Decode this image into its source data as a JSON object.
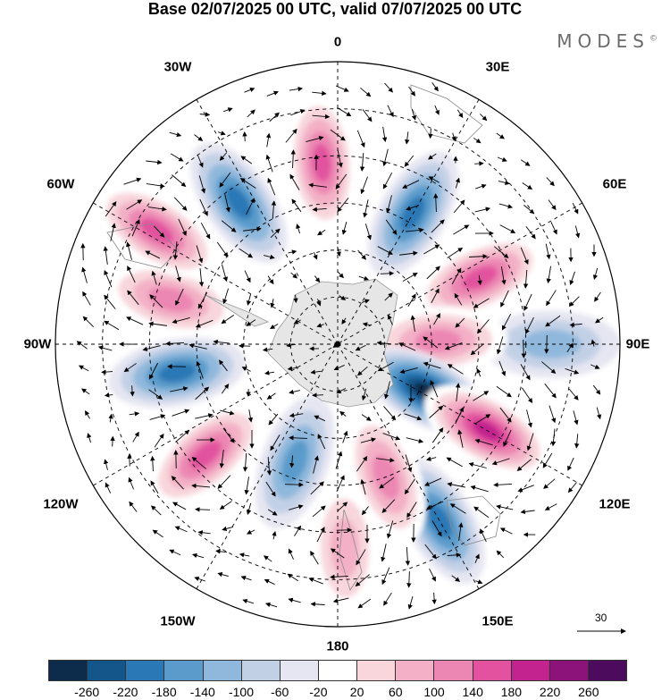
{
  "title": "Base 02/07/2025 00 UTC, valid 07/07/2025 00 UTC",
  "logo": "MODES",
  "logo_mark": "©",
  "longitude_labels": [
    "0",
    "30E",
    "60E",
    "90E",
    "120E",
    "150E",
    "180",
    "150W",
    "120W",
    "90W",
    "60W",
    "30W"
  ],
  "vector_reference": "30",
  "colorbar": {
    "ticks": [
      "-260",
      "-220",
      "-180",
      "-140",
      "-100",
      "-60",
      "-20",
      "20",
      "60",
      "100",
      "140",
      "180",
      "220",
      "260"
    ],
    "colors": [
      "#0d2b4a",
      "#14568a",
      "#2a78b5",
      "#5a9bcb",
      "#8fb8dc",
      "#c2d0e6",
      "#e6e6f2",
      "#ffffff",
      "#f8d6dc",
      "#f3b0c6",
      "#ec86b2",
      "#e2529f",
      "#c2238e",
      "#8c1379",
      "#4d0b5e"
    ]
  },
  "anomaly_blobs": [
    {
      "lon": -35,
      "lat": -35,
      "value": -170
    },
    {
      "lon": -5,
      "lat": -32,
      "value": 170
    },
    {
      "lon": 30,
      "lat": -42,
      "value": -170
    },
    {
      "lon": 65,
      "lat": -40,
      "value": 180
    },
    {
      "lon": 90,
      "lat": -22,
      "value": -120
    },
    {
      "lon": 88,
      "lat": -58,
      "value": 130
    },
    {
      "lon": 118,
      "lat": -58,
      "value": -260
    },
    {
      "lon": 120,
      "lat": -35,
      "value": 240
    },
    {
      "lon": 150,
      "lat": -25,
      "value": -200
    },
    {
      "lon": 178,
      "lat": -25,
      "value": 120
    },
    {
      "lon": 160,
      "lat": -45,
      "value": 150
    },
    {
      "lon": -160,
      "lat": -50,
      "value": -150
    },
    {
      "lon": -130,
      "lat": -35,
      "value": 170
    },
    {
      "lon": -100,
      "lat": -38,
      "value": -180
    },
    {
      "lon": -75,
      "lat": -35,
      "value": 150
    },
    {
      "lon": -58,
      "lat": -22,
      "value": 180
    }
  ]
}
